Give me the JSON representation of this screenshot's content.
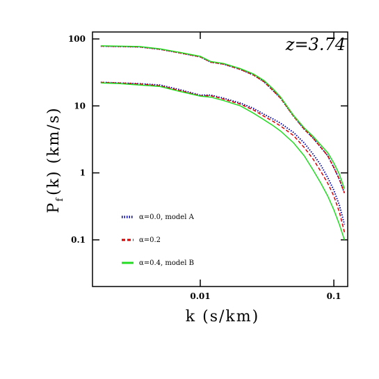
{
  "chart_data": {
    "type": "line",
    "annotation": "z=3.74",
    "xlabel": "k (s/km)",
    "ylabel": {
      "main": "P",
      "sub": "f",
      "rest": "(k) (km/s)"
    },
    "log_x": true,
    "log_y": true,
    "xlim": [
      0.00156,
      0.127
    ],
    "ylim": [
      0.0201,
      127
    ],
    "xticks": [
      0.01,
      0.1
    ],
    "yticks": [
      0.1,
      1,
      10,
      100
    ],
    "legend": "lower left",
    "x": [
      0.0018,
      0.0025,
      0.0035,
      0.005,
      0.007,
      0.01,
      0.012,
      0.015,
      0.02,
      0.025,
      0.03,
      0.035,
      0.04,
      0.05,
      0.06,
      0.07,
      0.08,
      0.09,
      0.1,
      0.11,
      0.12
    ],
    "series": [
      {
        "name": "α=0.0, model A",
        "color": "#0000aa",
        "dash": "1.5 2",
        "width": 2,
        "curves": [
          [
            78,
            77,
            76,
            70,
            62,
            54,
            45,
            42,
            35,
            29,
            23,
            17,
            13,
            7,
            4.5,
            3.3,
            2.4,
            1.8,
            1.2,
            0.8,
            0.5
          ],
          [
            22.5,
            22,
            21.5,
            20.5,
            17.5,
            14.5,
            14.5,
            13,
            11,
            9.2,
            7.5,
            6.4,
            5.5,
            4,
            2.8,
            1.9,
            1.3,
            0.85,
            0.55,
            0.33,
            0.17
          ]
        ]
      },
      {
        "name": "α=0.2",
        "color": "#dd0000",
        "dash": "5 3",
        "width": 1.5,
        "curves": [
          [
            78,
            77,
            76,
            70,
            62,
            54,
            45,
            42,
            35,
            29,
            23,
            17,
            13,
            7,
            4.5,
            3.3,
            2.4,
            1.8,
            1.2,
            0.8,
            0.5
          ],
          [
            22.5,
            22,
            21.3,
            20,
            17,
            14.2,
            14.2,
            12.6,
            10.6,
            8.7,
            7,
            5.9,
            5,
            3.6,
            2.4,
            1.6,
            1.05,
            0.7,
            0.45,
            0.26,
            0.13
          ]
        ]
      },
      {
        "name": "α=0.4, model B",
        "color": "#22dd22",
        "dash": "",
        "width": 1.5,
        "curves": [
          [
            79,
            78,
            77,
            71,
            63,
            55,
            46,
            43,
            36,
            30,
            24,
            18,
            13.5,
            7.2,
            4.7,
            3.5,
            2.6,
            2.0,
            1.4,
            0.95,
            0.58
          ],
          [
            22,
            21.5,
            20.5,
            19.5,
            16.5,
            14,
            13.5,
            12,
            10,
            7.8,
            6.2,
            5.1,
            4.2,
            2.8,
            1.8,
            1.1,
            0.7,
            0.45,
            0.28,
            0.17,
            0.1
          ]
        ]
      }
    ]
  }
}
